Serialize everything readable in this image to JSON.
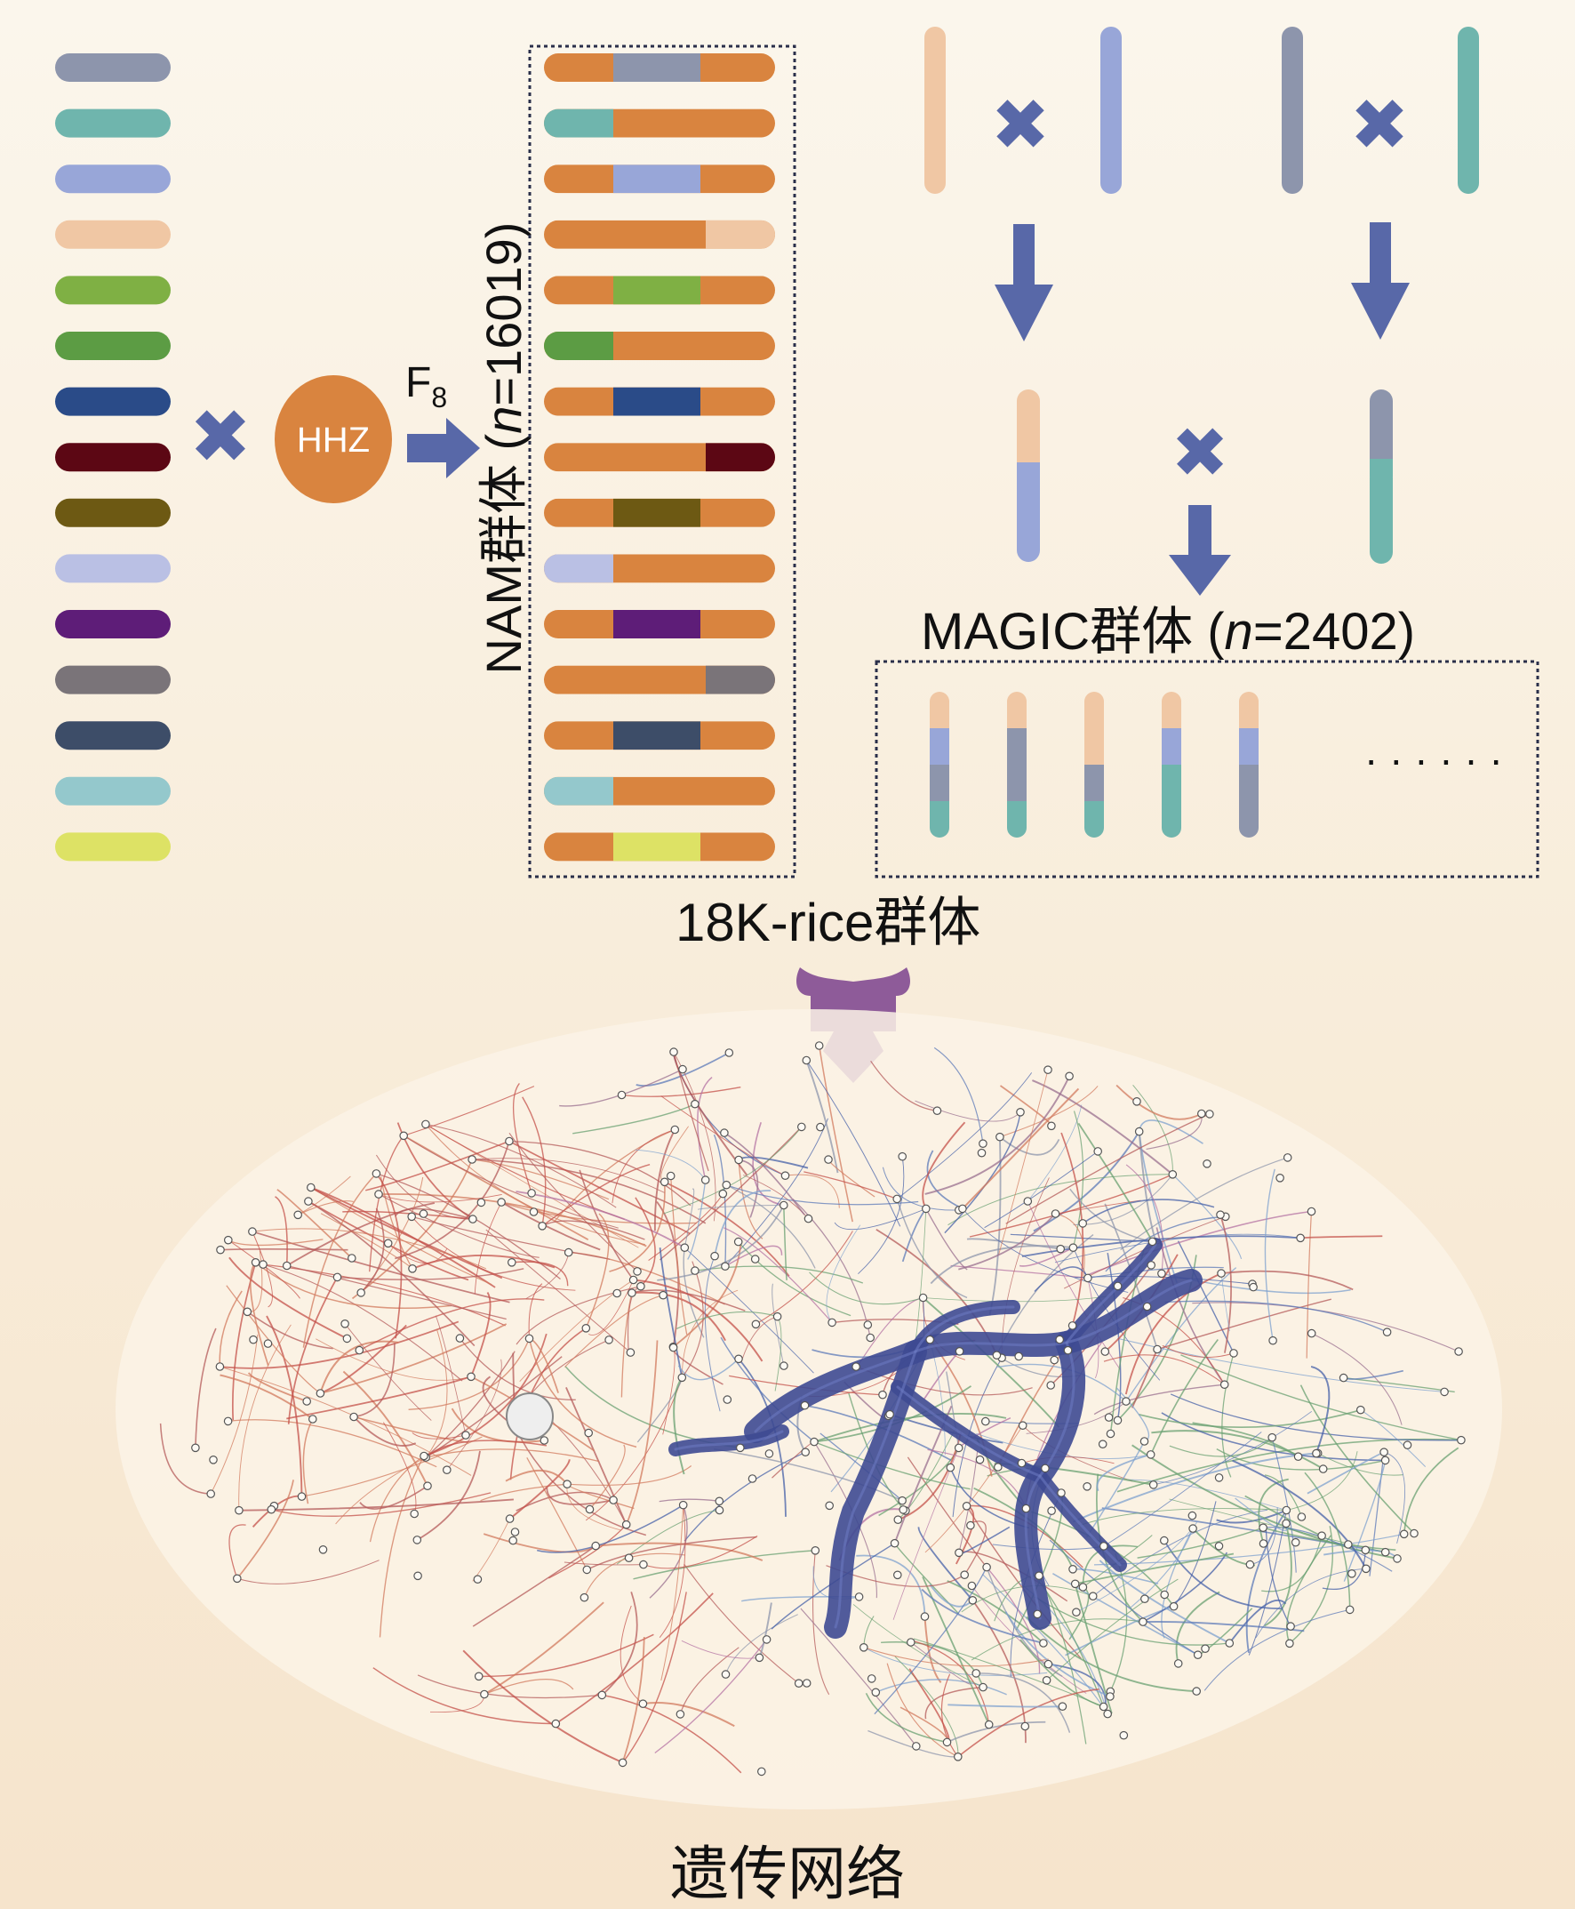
{
  "colors": {
    "hhz": "#d9843f",
    "arrow": "#5868a8",
    "funnel_arrow": "#8e5b99",
    "dotted_border": "#2a2f4a",
    "founders": [
      "#8d95ac",
      "#6fb5ad",
      "#98a6d8",
      "#f0c7a4",
      "#7fb044",
      "#5c9c44",
      "#2a4b88",
      "#5c0714",
      "#6d5913",
      "#bac0e4",
      "#5e1d78",
      "#7a7479",
      "#3d4d68",
      "#94c8cc",
      "#dde265"
    ],
    "nam_insert_side": [
      "middle",
      "left",
      "middle",
      "right",
      "middle",
      "left",
      "middle",
      "right",
      "middle",
      "left",
      "middle",
      "right",
      "middle",
      "left",
      "middle"
    ],
    "magic_parents": [
      "#f0c7a4",
      "#98a6d8",
      "#8d95ac",
      "#6fb5ad"
    ],
    "magic_lines": [
      [
        "#f0c7a4",
        "#98a6d8",
        "#8d95ac",
        "#6fb5ad"
      ],
      [
        "#f0c7a4",
        "#8d95ac",
        "#8d95ac",
        "#6fb5ad"
      ],
      [
        "#f0c7a4",
        "#f0c7a4",
        "#8d95ac",
        "#6fb5ad"
      ],
      [
        "#f0c7a4",
        "#98a6d8",
        "#6fb5ad",
        "#6fb5ad"
      ],
      [
        "#f0c7a4",
        "#98a6d8",
        "#8d95ac",
        "#8d95ac"
      ]
    ],
    "network_palette": [
      "#c4504a",
      "#b4595a",
      "#d27a5d",
      "#5c79b8",
      "#4560a8",
      "#7fa2cf",
      "#6aa072",
      "#b471a3",
      "#8d95ac",
      "#9a6f8f"
    ],
    "network_core": "#3e4a92"
  },
  "labels": {
    "hhz": "HHZ",
    "f8_main": "F",
    "f8_sub": "8",
    "nam_prefix": "NAM群体 (",
    "nam_n": "n",
    "nam_suffix": "=16019)",
    "magic_prefix": "MAGIC群体 (",
    "magic_n": "n",
    "magic_suffix": "=2402)",
    "ellipsis": "· · · · · ·",
    "rice_population": "18K-rice群体",
    "network": "遗传网络",
    "cross_symbol": "✖"
  }
}
